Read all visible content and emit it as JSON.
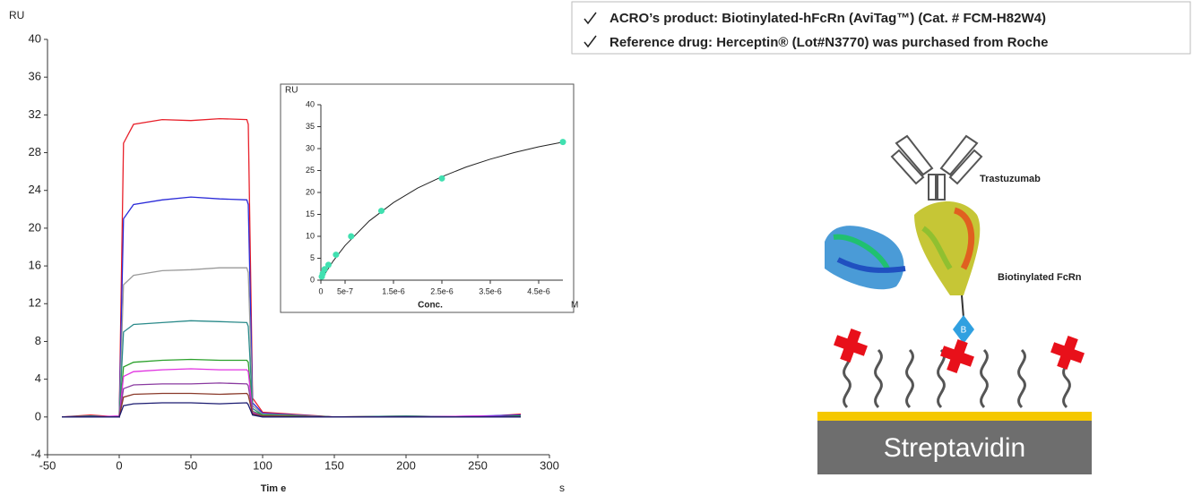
{
  "chart_data": [
    {
      "type": "line",
      "y_label": "RU",
      "x_label": "Tim e",
      "x_unit": "s",
      "xlim": [
        -50,
        300
      ],
      "ylim": [
        -4,
        40
      ],
      "xticks": [
        -50,
        0,
        50,
        100,
        150,
        200,
        250,
        300
      ],
      "yticks": [
        -4,
        0,
        4,
        8,
        12,
        16,
        20,
        24,
        28,
        32,
        36,
        40
      ],
      "x": [
        -40,
        -20,
        -1,
        0,
        3,
        10,
        30,
        50,
        70,
        89,
        90,
        93,
        100,
        150,
        200,
        250,
        280
      ],
      "series": [
        {
          "color": "#e8202a",
          "values": [
            0,
            0.2,
            0,
            0,
            29,
            31,
            31.5,
            31.4,
            31.6,
            31.5,
            31,
            2,
            0.5,
            0,
            0.1,
            0,
            0.3
          ]
        },
        {
          "color": "#2a2ad8",
          "values": [
            0,
            0.1,
            0,
            0,
            21,
            22.5,
            23,
            23.3,
            23.1,
            23,
            22.5,
            1.5,
            0.4,
            0,
            0,
            0.1,
            0.2
          ]
        },
        {
          "color": "#9a9a9a",
          "values": [
            0,
            0,
            0.1,
            0,
            14,
            15,
            15.5,
            15.6,
            15.8,
            15.8,
            15.3,
            1.2,
            0.3,
            0,
            0,
            0,
            0.1
          ]
        },
        {
          "color": "#2a8a8a",
          "values": [
            0,
            0.1,
            0,
            0,
            9,
            9.8,
            10,
            10.2,
            10.1,
            10,
            9.6,
            0.9,
            0.2,
            0,
            0.1,
            0,
            0
          ]
        },
        {
          "color": "#2aa02a",
          "values": [
            0,
            0,
            0,
            0,
            5.3,
            5.8,
            6,
            6.1,
            6,
            6,
            5.8,
            0.6,
            0.2,
            0,
            0,
            0,
            0.1
          ]
        },
        {
          "color": "#e030e0",
          "values": [
            0,
            0,
            0.1,
            0,
            4.3,
            4.8,
            5,
            5.1,
            5,
            5,
            4.8,
            0.5,
            0.1,
            0,
            0,
            0.1,
            0
          ]
        },
        {
          "color": "#8a3aa0",
          "values": [
            0,
            0,
            0,
            0,
            3,
            3.4,
            3.5,
            3.5,
            3.6,
            3.5,
            3.3,
            0.4,
            0.1,
            0,
            0,
            0,
            0
          ]
        },
        {
          "color": "#8a3a2a",
          "values": [
            0,
            0,
            0,
            0,
            2.1,
            2.4,
            2.5,
            2.5,
            2.4,
            2.5,
            2.3,
            0.3,
            0.1,
            0,
            0,
            0,
            0
          ]
        },
        {
          "color": "#1a1a70",
          "values": [
            0,
            0,
            0,
            0,
            1.2,
            1.4,
            1.5,
            1.5,
            1.4,
            1.5,
            1.3,
            0.2,
            0,
            0,
            0,
            0,
            0
          ]
        }
      ]
    },
    {
      "type": "scatter",
      "y_label": "RU",
      "x_label": "Conc.",
      "x_unit": "M",
      "xlim": [
        0,
        5e-06
      ],
      "ylim": [
        0,
        40
      ],
      "xticks": [
        0,
        {
          "value": 5e-07,
          "label": "5e-7"
        },
        {
          "value": 1.5e-06,
          "label": "1.5e-6"
        },
        {
          "value": 2.5e-06,
          "label": "2.5e-6"
        },
        {
          "value": 3.5e-06,
          "label": "3.5e-6"
        },
        {
          "value": 4.5e-06,
          "label": "4.5e-6"
        }
      ],
      "yticks": [
        0,
        5,
        10,
        15,
        20,
        25,
        30,
        35,
        40
      ],
      "color": "#40e0b0",
      "x": [
        1.95e-08,
        3.9e-08,
        7.8e-08,
        1.5625e-07,
        3.125e-07,
        6.25e-07,
        1.25e-06,
        2.5e-06,
        5e-06
      ],
      "values": [
        0.8,
        1.5,
        2.5,
        3.5,
        5.8,
        10,
        15.8,
        23.2,
        31.5
      ],
      "fit": {
        "color": "#222222",
        "x": [
          0,
          2.5e-07,
          5e-07,
          1e-06,
          1.5e-06,
          2e-06,
          2.5e-06,
          3e-06,
          3.5e-06,
          4e-06,
          4.5e-06,
          5e-06
        ],
        "values": [
          0,
          4.3,
          7.9,
          13.5,
          17.7,
          21,
          23.6,
          25.8,
          27.6,
          29.1,
          30.4,
          31.5
        ]
      }
    }
  ],
  "notes": [
    "ACRO’s product: Biotinylated-hFcRn (AviTag™) (Cat. # FCM-H82W4)",
    "Reference drug: Herceptin® (Lot#N3770) was purchased from Roche"
  ],
  "diagram": {
    "antibody": "Trastuzumab",
    "receptor": "Biotinylated FcRn",
    "biotin": "B",
    "surface": "Streptavidin"
  }
}
